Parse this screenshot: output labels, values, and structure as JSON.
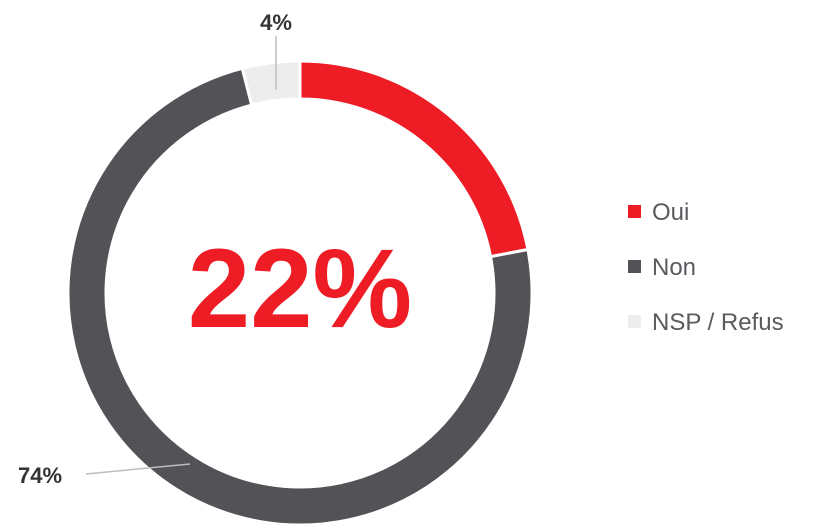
{
  "chart_data": {
    "type": "pie",
    "variant": "donut",
    "categories": [
      "Oui",
      "Non",
      "NSP / Refus"
    ],
    "values": [
      22,
      74,
      4
    ],
    "colors": [
      "#ee1c25",
      "#525257",
      "#ededed"
    ],
    "data_labels": [
      "22%",
      "74%",
      "4%"
    ],
    "center_label": "22%",
    "legend": {
      "placement": "right",
      "entries": [
        "Oui",
        "Non",
        "NSP / Refus"
      ]
    },
    "title": ""
  }
}
